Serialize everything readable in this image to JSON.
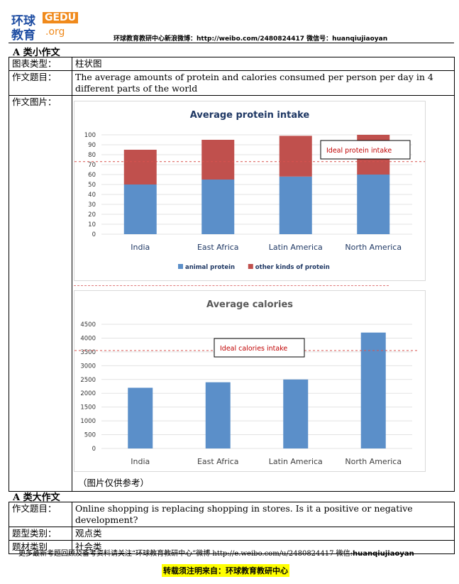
{
  "logo": {
    "cn_top": "环球",
    "cn_bottom": "教育",
    "gedu": "GEDU",
    "org": ".org"
  },
  "header": {
    "text": "环球教育教研中心新浪微博：http://weibo.com/2480824417  微信号：huanqiujiaoyan"
  },
  "section_a_small": "A 类小作文",
  "small_task": {
    "rows": [
      {
        "label": "图表类型：",
        "value": "柱状图"
      },
      {
        "label": "作文题目：",
        "value": "The average amounts of protein and calories consumed per person per day in 4 different parts of the world"
      },
      {
        "label": "作文图片：",
        "value": ""
      }
    ],
    "note": "（图片仅供参考）"
  },
  "chart_data": [
    {
      "type": "bar",
      "title": "Average protein intake",
      "categories": [
        "India",
        "East Africa",
        "Latin America",
        "North America"
      ],
      "series": [
        {
          "name": "animal protein",
          "values": [
            50,
            55,
            58,
            60
          ],
          "color": "#5b8fc9"
        },
        {
          "name": "other kinds of protein",
          "values": [
            35,
            40,
            41,
            40
          ],
          "color": "#c0504d"
        }
      ],
      "stacked": true,
      "ylim": [
        0,
        100
      ],
      "yticks": [
        0,
        10,
        20,
        30,
        40,
        50,
        60,
        70,
        80,
        90,
        100
      ],
      "reference_line": {
        "label": "Ideal protein intake",
        "value": 73
      },
      "legend": "bottom"
    },
    {
      "type": "bar",
      "title": "Average calories",
      "categories": [
        "India",
        "East Africa",
        "Latin America",
        "North America"
      ],
      "series": [
        {
          "values": [
            2200,
            2400,
            2500,
            4200
          ],
          "color": "#5b8fc9"
        }
      ],
      "ylim": [
        0,
        4500
      ],
      "yticks": [
        0,
        500,
        1000,
        1500,
        2000,
        2500,
        3000,
        3500,
        4000,
        4500
      ],
      "reference_line": {
        "label": "Ideal calories intake",
        "value": 3550
      }
    }
  ],
  "section_a_large": "A 类大作文",
  "large_task": {
    "rows": [
      {
        "label": "作文题目：",
        "value": "Online shopping is replacing shopping in stores. Is it a positive or negative development?"
      },
      {
        "label": "题型类别：",
        "value": "观点类"
      },
      {
        "label": "题材类别",
        "value": "社会类"
      }
    ]
  },
  "footer": {
    "line1": "更多最新考题回顾及备考资料请关注“环球教育教研中心”微博 http://e.weibo.com/u/2480824417  微信:",
    "wechat": "huanqiujiaoyan",
    "line2": "转载须注明来自：环球教育教研中心"
  },
  "colors": {
    "accent_blue": "#1f4ea3",
    "accent_orange": "#f08a1c",
    "bar_blue": "#5b8fc9",
    "bar_red": "#c0504d"
  }
}
